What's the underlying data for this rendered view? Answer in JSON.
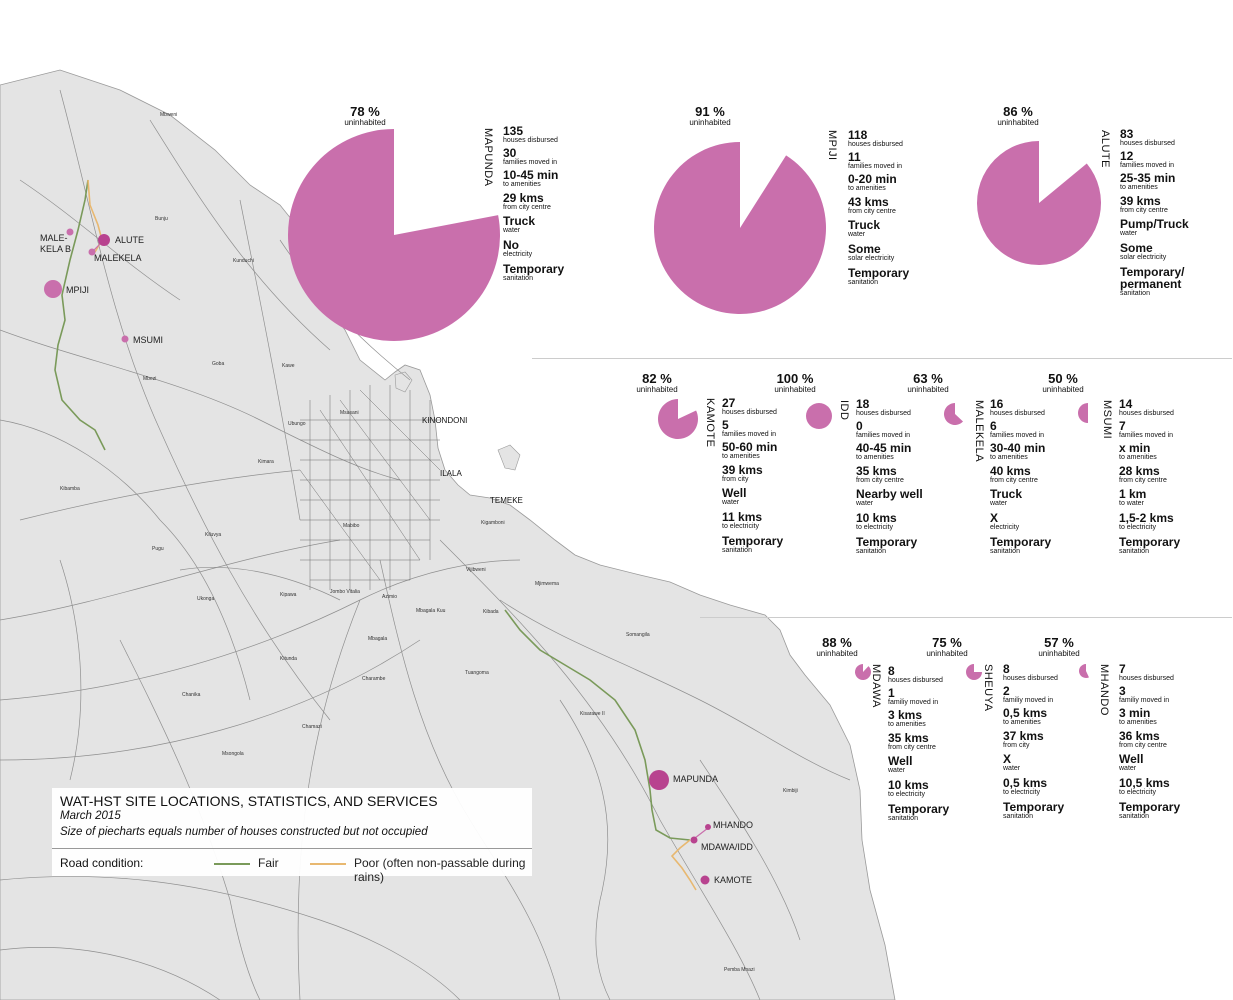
{
  "legend": {
    "title": "WAT-HST SITE LOCATIONS, STATISTICS, AND SERVICES",
    "date": "March 2015",
    "note": "Size of piecharts equals number of houses constructed but not occupied",
    "road_condition_label": "Road condition:",
    "fair_label": "Fair",
    "poor_label": "Poor (often non-passable during rains)",
    "fair_color": "#7a9a5a",
    "poor_color": "#e8b870"
  },
  "colors": {
    "pie": "#c96fac",
    "site_dot": "#b8438f",
    "land": "#e4e4e4",
    "water": "#ffffff",
    "roads": "#8a8a8a"
  },
  "districts": {
    "kinondoni": "KINONDONI",
    "ilala": "ILALA",
    "temeke": "TEMEKE"
  },
  "map_labels": [
    "Mbweni",
    "Bunju",
    "Kunduchi",
    "Goba",
    "Kawe",
    "Mbezi",
    "Msasani",
    "Ubungo",
    "Kimara",
    "Kibamba",
    "Kiluvya",
    "Pugu",
    "Ukonga",
    "Kipawa",
    "Kigamboni",
    "Vijibweni",
    "Mjimwema",
    "Kibada",
    "Mbagala Kuu",
    "Mbagala",
    "Kitunda",
    "Charambe",
    "Chanika",
    "Chamazi",
    "Msongola",
    "Tuangoma",
    "Somangila",
    "Kisarawe II",
    "Kimbiji",
    "Pemba Mnazi",
    "Mabibo",
    "Jombo Vitalia",
    "Azimio"
  ],
  "sites_on_map": [
    {
      "name": "ALUTE"
    },
    {
      "name": "MALEKELA"
    },
    {
      "name": "MALE-KELA B"
    },
    {
      "name": "MPIJI"
    },
    {
      "name": "MSUMI"
    },
    {
      "name": "MAPUNDA"
    },
    {
      "name": "MHANDO"
    },
    {
      "name": "MDAWA/IDD"
    },
    {
      "name": "KAMOTE"
    }
  ],
  "uninhabited_label": "uninhabited",
  "villages": [
    {
      "name": "MAPUNDA",
      "pct": "78 %",
      "fraction": 0.78,
      "stats": [
        [
          "135",
          "houses disbursed"
        ],
        [
          "30",
          "families moved in"
        ],
        [
          "10-45 min",
          "to amenities"
        ],
        [
          "29 kms",
          "from city centre"
        ],
        [
          "Truck",
          "water"
        ],
        [
          "No",
          "electricity"
        ],
        [
          "Temporary",
          "sanitation"
        ]
      ]
    },
    {
      "name": "MPIJI",
      "pct": "91 %",
      "fraction": 0.91,
      "stats": [
        [
          "118",
          "houses disbursed"
        ],
        [
          "11",
          "families moved in"
        ],
        [
          "0-20 min",
          "to amenities"
        ],
        [
          "43 kms",
          "from city centre"
        ],
        [
          "Truck",
          "water"
        ],
        [
          "Some",
          "solar electricity"
        ],
        [
          "Temporary",
          "sanitation"
        ]
      ]
    },
    {
      "name": "ALUTE",
      "pct": "86 %",
      "fraction": 0.86,
      "stats": [
        [
          "83",
          "houses disbursed"
        ],
        [
          "12",
          "families moved in"
        ],
        [
          "25-35 min",
          "to amenities"
        ],
        [
          "39 kms",
          "from city centre"
        ],
        [
          "Pump/Truck",
          "water"
        ],
        [
          "Some",
          "solar electricity"
        ],
        [
          "Temporary/ permanent",
          "sanitation"
        ]
      ]
    },
    {
      "name": "KAMOTE",
      "pct": "82 %",
      "fraction": 0.82,
      "stats": [
        [
          "27",
          "houses disbursed"
        ],
        [
          "5",
          "families moved in"
        ],
        [
          "50-60 min",
          "to amenities"
        ],
        [
          "39 kms",
          "from city"
        ],
        [
          "Well",
          "water"
        ],
        [
          "11 kms",
          "to electricity"
        ],
        [
          "Temporary",
          "sanitation"
        ]
      ]
    },
    {
      "name": "IDD",
      "pct": "100 %",
      "fraction": 1.0,
      "stats": [
        [
          "18",
          "houses disbursed"
        ],
        [
          "0",
          "families moved in"
        ],
        [
          "40-45 min",
          "to amenities"
        ],
        [
          "35 kms",
          "from city centre"
        ],
        [
          "Nearby well",
          "water"
        ],
        [
          "10 kms",
          "to electricity"
        ],
        [
          "Temporary",
          "sanitation"
        ]
      ]
    },
    {
      "name": "MALEKELA",
      "pct": "63 %",
      "fraction": 0.63,
      "stats": [
        [
          "16",
          "houses disbursed"
        ],
        [
          "6",
          "families moved in"
        ],
        [
          "30-40 min",
          "to amenities"
        ],
        [
          "40 kms",
          "from city centre"
        ],
        [
          "Truck",
          "water"
        ],
        [
          "X",
          "electricity"
        ],
        [
          "Temporary",
          "sanitation"
        ]
      ]
    },
    {
      "name": "MSUMI",
      "pct": "50 %",
      "fraction": 0.5,
      "stats": [
        [
          "14",
          "houses disbursed"
        ],
        [
          "7",
          "families moved in"
        ],
        [
          "x min",
          "to amenities"
        ],
        [
          "28 kms",
          "from city centre"
        ],
        [
          "1 km",
          "to water"
        ],
        [
          "1,5-2 kms",
          "to electricity"
        ],
        [
          "Temporary",
          "sanitation"
        ]
      ]
    },
    {
      "name": "MDAWA",
      "pct": "88 %",
      "fraction": 0.88,
      "stats": [
        [
          "8",
          "houses disbursed"
        ],
        [
          "1",
          "familiy moved in"
        ],
        [
          "3 kms",
          "to amenities"
        ],
        [
          "35 kms",
          "from city centre"
        ],
        [
          "Well",
          "water"
        ],
        [
          "10 kms",
          "to electricity"
        ],
        [
          "Temporary",
          "sanitation"
        ]
      ]
    },
    {
      "name": "SHEUYA",
      "pct": "75 %",
      "fraction": 0.75,
      "stats": [
        [
          "8",
          "houses disbursed"
        ],
        [
          "2",
          "familiy moved in"
        ],
        [
          "0,5 kms",
          "to amenities"
        ],
        [
          "37 kms",
          "from city"
        ],
        [
          "X",
          "water"
        ],
        [
          "0,5 kms",
          "to electricity"
        ],
        [
          "Temporary",
          "sanitation"
        ]
      ]
    },
    {
      "name": "MHANDO",
      "pct": "57 %",
      "fraction": 0.57,
      "stats": [
        [
          "7",
          "houses disbursed"
        ],
        [
          "3",
          "familiy moved in"
        ],
        [
          "3 min",
          "to amenities"
        ],
        [
          "36 kms",
          "from city centre"
        ],
        [
          "Well",
          "water"
        ],
        [
          "10,5 kms",
          "to electricity"
        ],
        [
          "Temporary",
          "sanitation"
        ]
      ]
    }
  ]
}
